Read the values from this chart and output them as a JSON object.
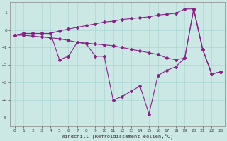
{
  "xlabel": "Windchill (Refroidissement éolien,°C)",
  "bg_color": "#cce8e4",
  "line_color": "#882288",
  "grid_color": "#aad8d4",
  "ylim": [
    -5.5,
    1.6
  ],
  "xlim": [
    -0.5,
    23.5
  ],
  "yticks": [
    -5,
    -4,
    -3,
    -2,
    -1,
    0,
    1
  ],
  "xticks": [
    0,
    1,
    2,
    3,
    4,
    5,
    6,
    7,
    8,
    9,
    10,
    11,
    12,
    13,
    14,
    15,
    16,
    17,
    18,
    19,
    20,
    21,
    22,
    23
  ],
  "main_line": [
    -0.3,
    -0.2,
    -0.2,
    -0.2,
    -0.2,
    -1.7,
    -1.5,
    -0.7,
    -0.8,
    -1.5,
    -1.5,
    -4.0,
    -3.8,
    -3.5,
    -3.2,
    -4.8,
    -2.6,
    -2.3,
    -2.1,
    -1.6,
    1.2,
    -1.1,
    -2.5,
    -2.4
  ],
  "upper_line": [
    -0.3,
    -0.2,
    -0.2,
    -0.2,
    -0.2,
    -0.05,
    0.05,
    0.15,
    0.25,
    0.35,
    0.45,
    0.5,
    0.6,
    0.65,
    0.7,
    0.75,
    0.85,
    0.9,
    0.95,
    1.2,
    1.2,
    -1.1,
    -2.5,
    -2.4
  ],
  "lower_line": [
    -0.3,
    -0.3,
    -0.35,
    -0.4,
    -0.45,
    -0.5,
    -0.6,
    -0.7,
    -0.75,
    -0.8,
    -0.85,
    -0.9,
    -1.0,
    -1.1,
    -1.2,
    -1.3,
    -1.4,
    -1.6,
    -1.7,
    -1.6,
    1.2,
    -1.1,
    -2.5,
    -2.4
  ]
}
